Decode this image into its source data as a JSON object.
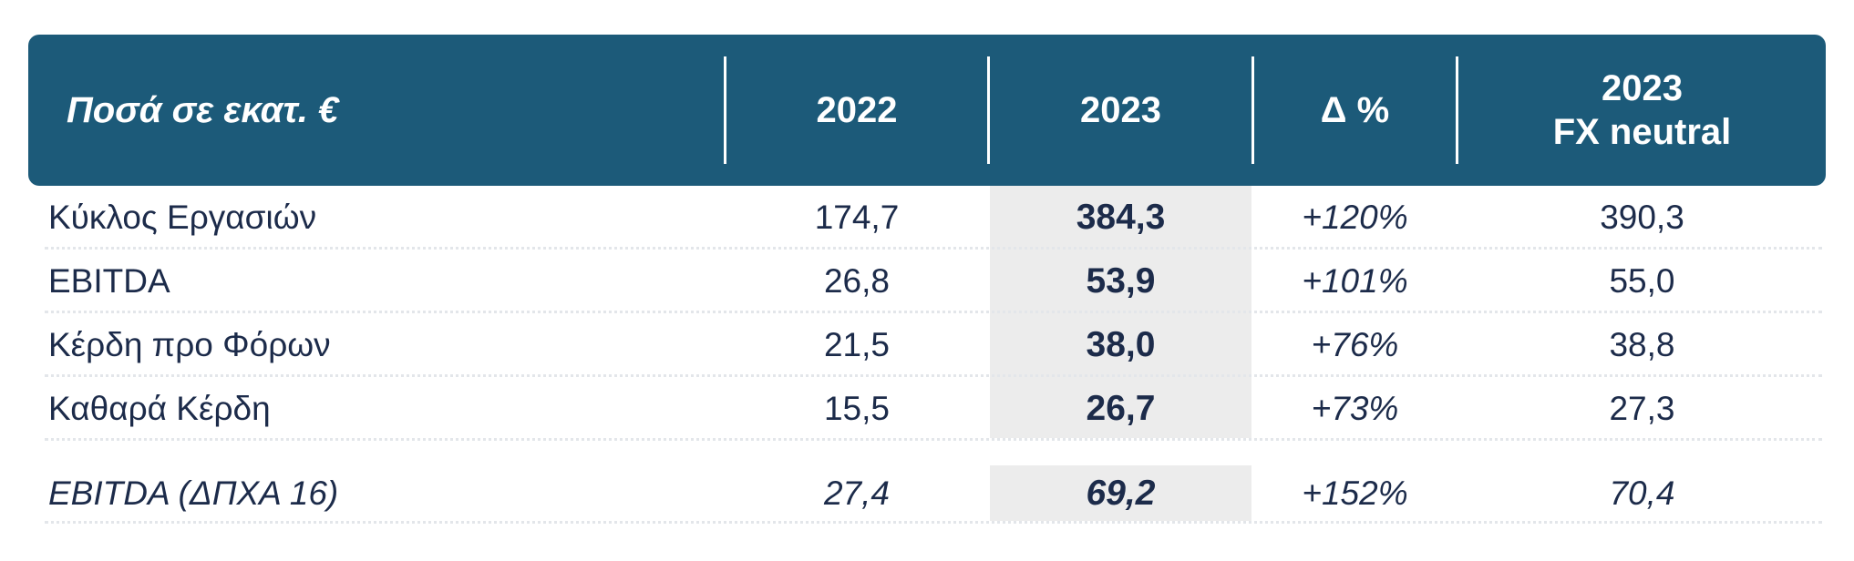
{
  "header": {
    "label": "Ποσά σε εκατ. €",
    "col_2022": "2022",
    "col_2023": "2023",
    "col_delta": "Δ %",
    "col_fx_line1": "2023",
    "col_fx_line2": "FX neutral"
  },
  "rows": [
    {
      "label": "Κύκλος Εργασιών",
      "v2022": "174,7",
      "v2023": "384,3",
      "delta": "+120%",
      "fx": "390,3"
    },
    {
      "label": "EBITDA",
      "v2022": "26,8",
      "v2023": "53,9",
      "delta": "+101%",
      "fx": "55,0"
    },
    {
      "label": "Κέρδη προ Φόρων",
      "v2022": "21,5",
      "v2023": "38,0",
      "delta": "+76%",
      "fx": "38,8"
    },
    {
      "label": "Καθαρά Κέρδη",
      "v2022": "15,5",
      "v2023": "26,7",
      "delta": "+73%",
      "fx": "27,3"
    },
    {
      "label": "EBITDA (ΔΠΧΑ 16)",
      "v2022": "27,4",
      "v2023": "69,2",
      "delta": "+152%",
      "fx": "70,4"
    }
  ],
  "colors": {
    "header_bg": "#1c5a79",
    "text": "#1c2b4a",
    "highlight": "#ececec"
  }
}
